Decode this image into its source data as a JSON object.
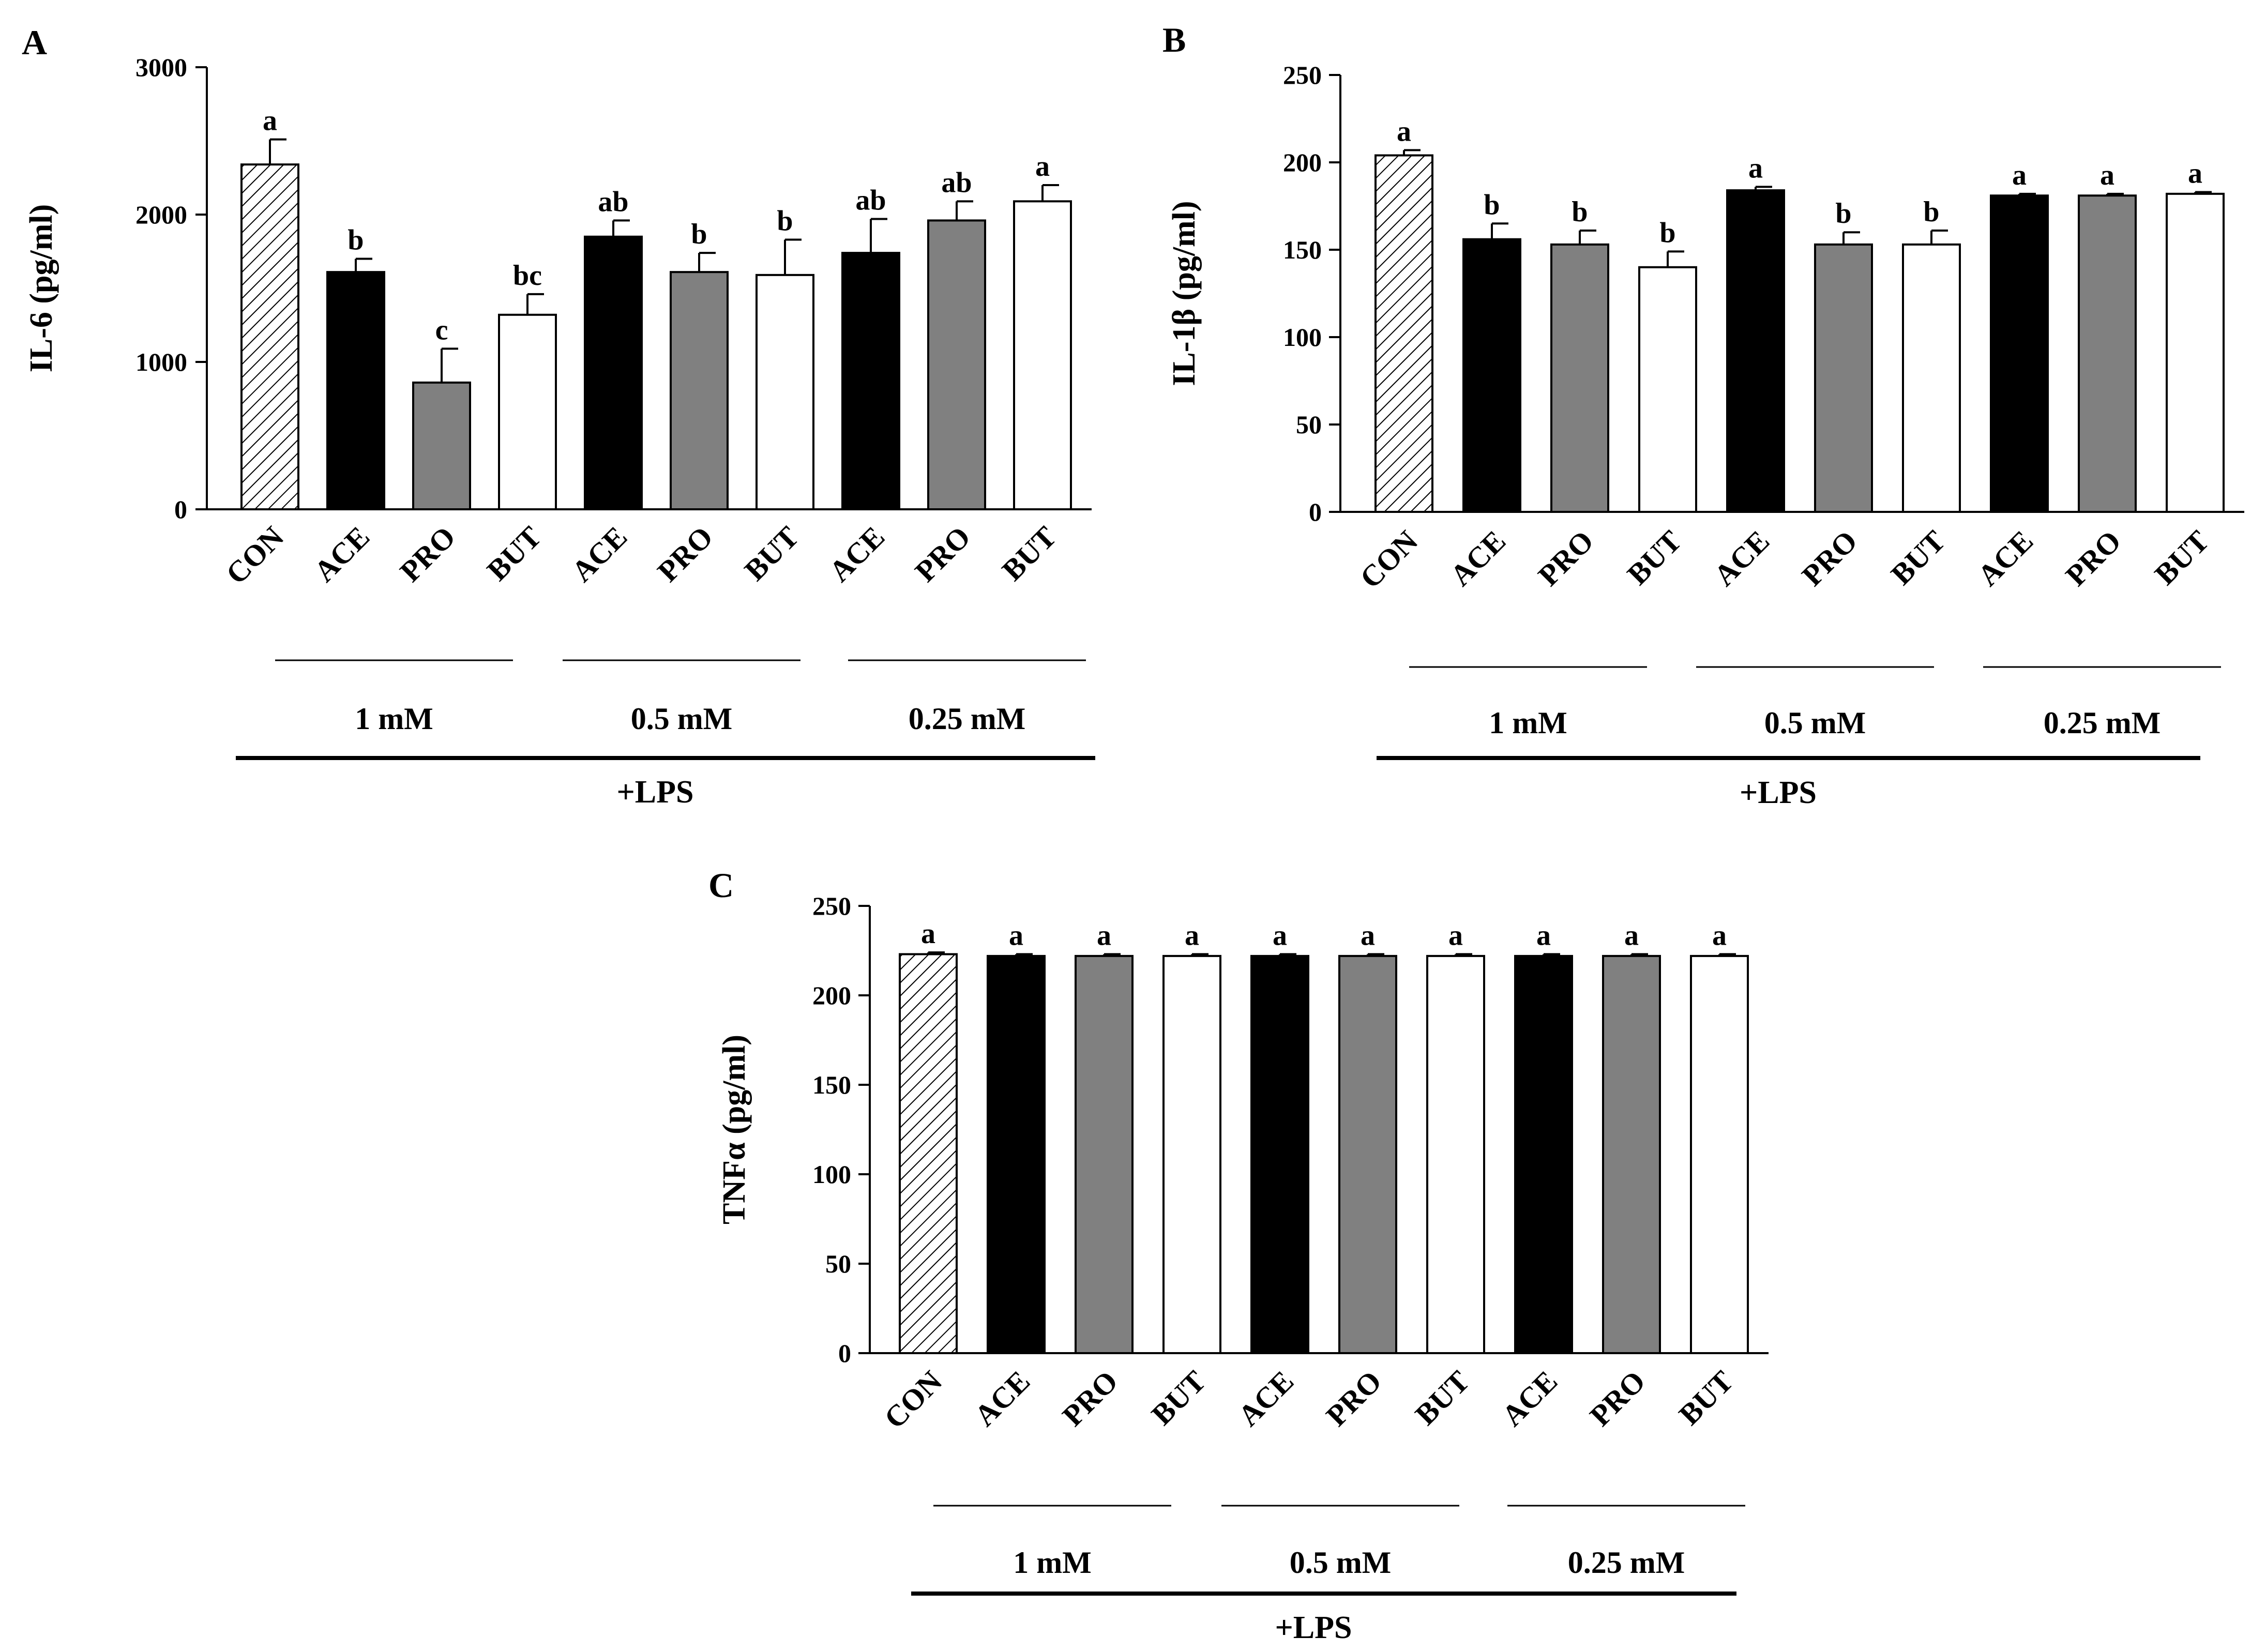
{
  "chart_data": [
    {
      "type": "bar",
      "panel": "A",
      "ylabel": "IL-6 (pg/ml)",
      "ylim": [
        0,
        3000
      ],
      "yticks": [
        0,
        1000,
        2000,
        3000
      ],
      "categories": [
        "CON",
        "ACE",
        "PRO",
        "BUT",
        "ACE",
        "PRO",
        "BUT",
        "ACE",
        "PRO",
        "BUT"
      ],
      "values": [
        2340,
        1610,
        860,
        1320,
        1850,
        1610,
        1590,
        1740,
        1960,
        2090
      ],
      "errors": [
        170,
        90,
        230,
        140,
        110,
        130,
        240,
        230,
        130,
        110
      ],
      "significance": [
        "a",
        "b",
        "c",
        "bc",
        "ab",
        "b",
        "b",
        "ab",
        "ab",
        "a"
      ],
      "fills": [
        "hatch",
        "black",
        "gray",
        "white",
        "black",
        "gray",
        "white",
        "black",
        "gray",
        "white"
      ],
      "groups": [
        "1 mM",
        "0.5 mM",
        "0.25 mM"
      ],
      "treatment": "+LPS"
    },
    {
      "type": "bar",
      "panel": "B",
      "ylabel": "IL-1β (pg/ml)",
      "ylim": [
        0,
        250
      ],
      "yticks": [
        0,
        50,
        100,
        150,
        200,
        250
      ],
      "categories": [
        "CON",
        "ACE",
        "PRO",
        "BUT",
        "ACE",
        "PRO",
        "BUT",
        "ACE",
        "PRO",
        "BUT"
      ],
      "values": [
        204,
        156,
        153,
        140,
        184,
        153,
        153,
        181,
        181,
        182
      ],
      "errors": [
        3,
        9,
        8,
        9,
        2,
        7,
        8,
        1,
        1,
        1
      ],
      "significance": [
        "a",
        "b",
        "b",
        "b",
        "a",
        "b",
        "b",
        "a",
        "a",
        "a"
      ],
      "fills": [
        "hatch",
        "black",
        "gray",
        "white",
        "black",
        "gray",
        "white",
        "black",
        "gray",
        "white"
      ],
      "groups": [
        "1 mM",
        "0.5 mM",
        "0.25 mM"
      ],
      "treatment": "+LPS"
    },
    {
      "type": "bar",
      "panel": "C",
      "ylabel": "TNFα (pg/ml)",
      "ylim": [
        0,
        250
      ],
      "yticks": [
        0,
        50,
        100,
        150,
        200,
        250
      ],
      "categories": [
        "CON",
        "ACE",
        "PRO",
        "BUT",
        "ACE",
        "PRO",
        "BUT",
        "ACE",
        "PRO",
        "BUT"
      ],
      "values": [
        223,
        222,
        222,
        222,
        222,
        222,
        222,
        222,
        222,
        222
      ],
      "errors": [
        1,
        1,
        1,
        1,
        1,
        1,
        1,
        1,
        1,
        1
      ],
      "significance": [
        "a",
        "a",
        "a",
        "a",
        "a",
        "a",
        "a",
        "a",
        "a",
        "a"
      ],
      "fills": [
        "hatch",
        "black",
        "gray",
        "white",
        "black",
        "gray",
        "white",
        "black",
        "gray",
        "white"
      ],
      "groups": [
        "1 mM",
        "0.5 mM",
        "0.25 mM"
      ],
      "treatment": "+LPS"
    }
  ],
  "colors": {
    "black": "#000000",
    "gray": "#808080",
    "white": "#ffffff",
    "axis": "#000000"
  }
}
